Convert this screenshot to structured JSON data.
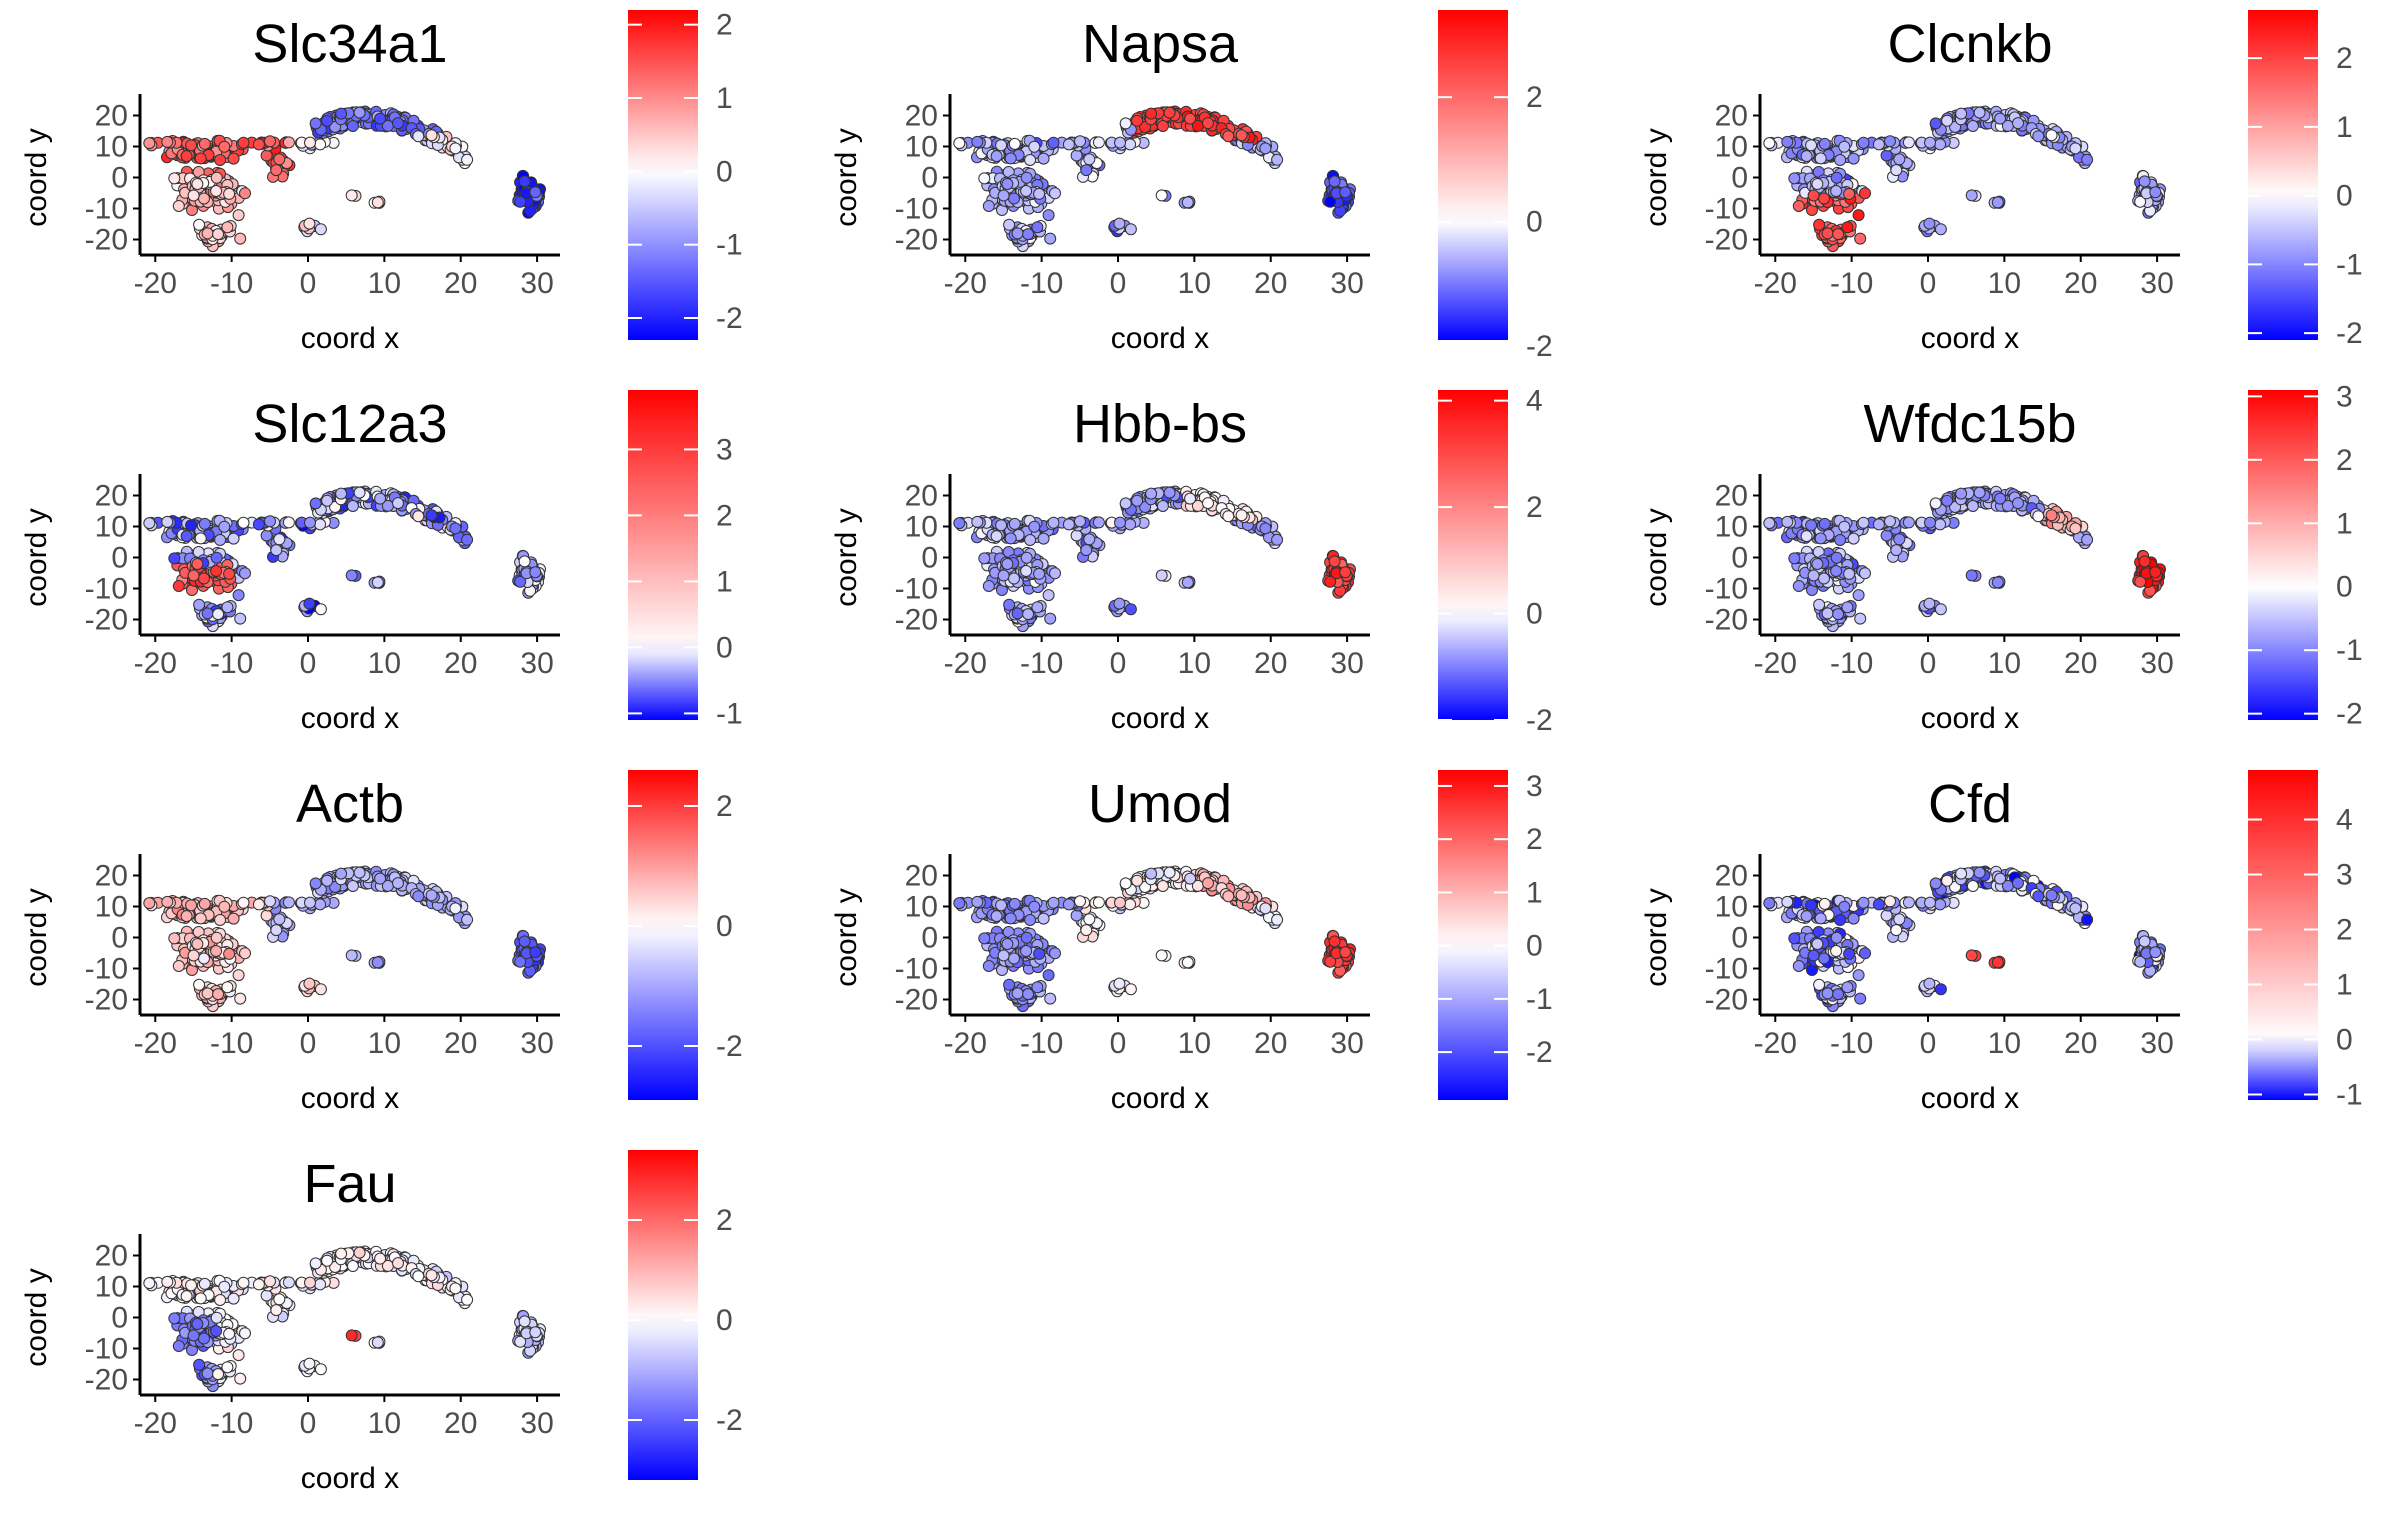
{
  "figure": {
    "layout": {
      "rows": 4,
      "cols": 3
    },
    "colors": {
      "low": "#0000ff",
      "mid": "#ffffff",
      "high": "#ff0000",
      "axis": "#000000",
      "tick_text": "#4d4d4d",
      "point_outline": "#333333"
    }
  },
  "chart_data": [
    {
      "type": "scatter",
      "title": "Slc34a1",
      "xlabel": "coord x",
      "ylabel": "coord y",
      "xlim": [
        -22,
        33
      ],
      "ylim": [
        -25,
        25
      ],
      "xticks": [
        -20,
        -10,
        0,
        10,
        20,
        30
      ],
      "yticks": [
        -20,
        -10,
        0,
        10,
        20
      ],
      "legend": {
        "position": "right",
        "min": -2.3,
        "max": 2.2,
        "ticks": [
          2,
          1,
          0,
          -1,
          -2
        ]
      },
      "pattern": "slc34a1"
    },
    {
      "type": "scatter",
      "title": "Napsa",
      "xlabel": "coord x",
      "ylabel": "coord y",
      "xlim": [
        -22,
        33
      ],
      "ylim": [
        -25,
        25
      ],
      "xticks": [
        -20,
        -10,
        0,
        10,
        20,
        30
      ],
      "yticks": [
        -20,
        -10,
        0,
        10,
        20
      ],
      "legend": {
        "position": "right",
        "min": -1.9,
        "max": 3.4,
        "ticks": [
          2,
          0,
          -2
        ]
      },
      "pattern": "napsa"
    },
    {
      "type": "scatter",
      "title": "Clcnkb",
      "xlabel": "coord x",
      "ylabel": "coord y",
      "xlim": [
        -22,
        33
      ],
      "ylim": [
        -25,
        25
      ],
      "xticks": [
        -20,
        -10,
        0,
        10,
        20,
        30
      ],
      "yticks": [
        -20,
        -10,
        0,
        10,
        20
      ],
      "legend": {
        "position": "right",
        "min": -2.1,
        "max": 2.7,
        "ticks": [
          2,
          1,
          0,
          -1,
          -2
        ]
      },
      "pattern": "clcnkb"
    },
    {
      "type": "scatter",
      "title": "Slc12a3",
      "xlabel": "coord x",
      "ylabel": "coord y",
      "xlim": [
        -22,
        33
      ],
      "ylim": [
        -25,
        25
      ],
      "xticks": [
        -20,
        -10,
        0,
        10,
        20,
        30
      ],
      "yticks": [
        -20,
        -10,
        0,
        10,
        20
      ],
      "legend": {
        "position": "right",
        "min": -1.1,
        "max": 3.9,
        "ticks": [
          3,
          2,
          1,
          0,
          -1
        ]
      },
      "pattern": "slc12a3"
    },
    {
      "type": "scatter",
      "title": "Hbb-bs",
      "xlabel": "coord x",
      "ylabel": "coord y",
      "xlim": [
        -22,
        33
      ],
      "ylim": [
        -25,
        25
      ],
      "xticks": [
        -20,
        -10,
        0,
        10,
        20,
        30
      ],
      "yticks": [
        -20,
        -10,
        0,
        10,
        20
      ],
      "legend": {
        "position": "right",
        "min": -2.0,
        "max": 4.2,
        "ticks": [
          4,
          2,
          0,
          -2
        ]
      },
      "pattern": "hbb"
    },
    {
      "type": "scatter",
      "title": "Wfdc15b",
      "xlabel": "coord x",
      "ylabel": "coord y",
      "xlim": [
        -22,
        33
      ],
      "ylim": [
        -25,
        25
      ],
      "xticks": [
        -20,
        -10,
        0,
        10,
        20,
        30
      ],
      "yticks": [
        -20,
        -10,
        0,
        10,
        20
      ],
      "legend": {
        "position": "right",
        "min": -2.1,
        "max": 3.1,
        "ticks": [
          3,
          2,
          1,
          0,
          -1,
          -2
        ]
      },
      "pattern": "wfdc"
    },
    {
      "type": "scatter",
      "title": "Actb",
      "xlabel": "coord x",
      "ylabel": "coord y",
      "xlim": [
        -22,
        33
      ],
      "ylim": [
        -25,
        25
      ],
      "xticks": [
        -20,
        -10,
        0,
        10,
        20,
        30
      ],
      "yticks": [
        -20,
        -10,
        0,
        10,
        20
      ],
      "legend": {
        "position": "right",
        "min": -2.9,
        "max": 2.6,
        "ticks": [
          2,
          0,
          -2
        ]
      },
      "pattern": "actb"
    },
    {
      "type": "scatter",
      "title": "Umod",
      "xlabel": "coord x",
      "ylabel": "coord y",
      "xlim": [
        -22,
        33
      ],
      "ylim": [
        -25,
        25
      ],
      "xticks": [
        -20,
        -10,
        0,
        10,
        20,
        30
      ],
      "yticks": [
        -20,
        -10,
        0,
        10,
        20
      ],
      "legend": {
        "position": "right",
        "min": -2.9,
        "max": 3.3,
        "ticks": [
          3,
          2,
          1,
          0,
          -1,
          -2
        ]
      },
      "pattern": "umod"
    },
    {
      "type": "scatter",
      "title": "Cfd",
      "xlabel": "coord x",
      "ylabel": "coord y",
      "xlim": [
        -22,
        33
      ],
      "ylim": [
        -25,
        25
      ],
      "xticks": [
        -20,
        -10,
        0,
        10,
        20,
        30
      ],
      "yticks": [
        -20,
        -10,
        0,
        10,
        20
      ],
      "legend": {
        "position": "right",
        "min": -1.1,
        "max": 4.9,
        "ticks": [
          4,
          3,
          2,
          1,
          0,
          -1
        ]
      },
      "pattern": "cfd"
    },
    {
      "type": "scatter",
      "title": "Fau",
      "xlabel": "coord x",
      "ylabel": "coord y",
      "xlim": [
        -22,
        33
      ],
      "ylim": [
        -25,
        25
      ],
      "xticks": [
        -20,
        -10,
        0,
        10,
        20,
        30
      ],
      "yticks": [
        -20,
        -10,
        0,
        10,
        20
      ],
      "legend": {
        "position": "right",
        "min": -3.2,
        "max": 3.4,
        "ticks": [
          2,
          0,
          -2
        ]
      },
      "pattern": "fau"
    }
  ]
}
